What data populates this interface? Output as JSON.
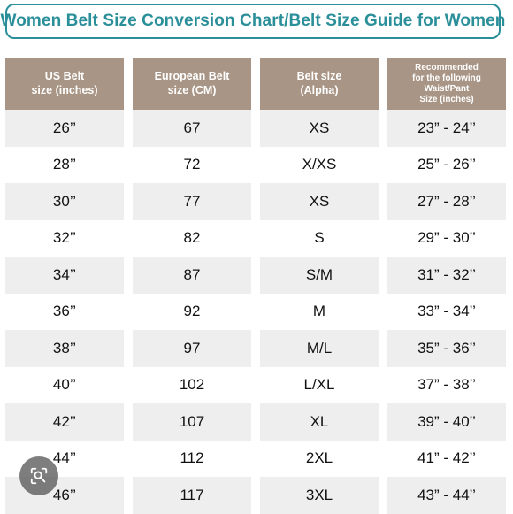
{
  "title": "Women Belt Size Conversion Chart/Belt Size Guide for Women",
  "colors": {
    "title_accent": "#2b8f9a",
    "header_bg": "#a89585",
    "stripe_bg": "#eeeeee"
  },
  "headers": [
    "US Belt\nsize (inches)",
    "European Belt\nsize (CM)",
    "Belt size\n(Alpha)",
    "Recommended\nfor the following\nWaist/Pant\nSize (inches)"
  ],
  "rows": [
    [
      "26’’",
      "67",
      "XS",
      "23” - 24’’"
    ],
    [
      "28’’",
      "72",
      "X/XS",
      "25” - 26’’"
    ],
    [
      "30’’",
      "77",
      "XS",
      "27” - 28’’"
    ],
    [
      "32’’",
      "82",
      "S",
      "29” - 30’’"
    ],
    [
      "34’’",
      "87",
      "S/M",
      "31” - 32’’"
    ],
    [
      "36’’",
      "92",
      "M",
      "33” - 34’’"
    ],
    [
      "38’’",
      "97",
      "M/L",
      "35” - 36’’"
    ],
    [
      "40’’",
      "102",
      "L/XL",
      "37” - 38’’"
    ],
    [
      "42’’",
      "107",
      "XL",
      "39” - 40’’"
    ],
    [
      "44’’",
      "112",
      "2XL",
      "41” - 42’’"
    ],
    [
      "46’’",
      "117",
      "3XL",
      "43” - 44’’"
    ]
  ],
  "overlay": {
    "icon": "lens-search-icon"
  }
}
